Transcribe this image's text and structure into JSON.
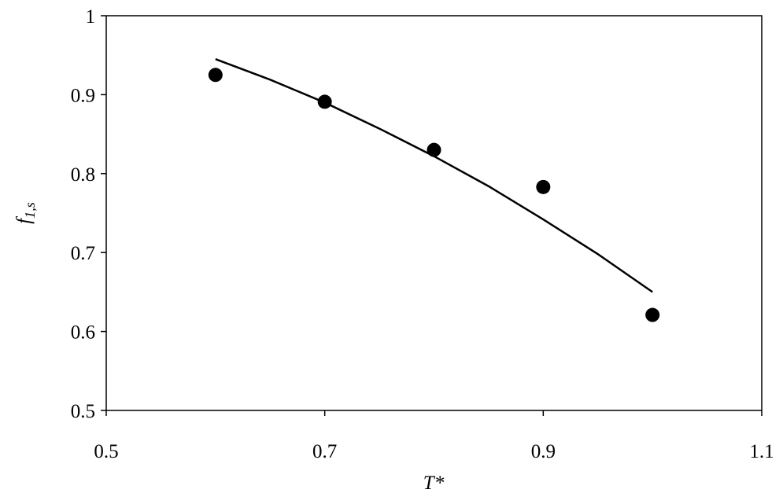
{
  "chart_data": {
    "type": "scatter",
    "x_label": "T*",
    "y_label": "f",
    "y_label_subscript": "1,s",
    "xlim": [
      0.5,
      1.1
    ],
    "xticks": [
      0.5,
      0.7,
      0.9,
      1.1
    ],
    "ylim": [
      0.5,
      1
    ],
    "yticks": [
      0.5,
      0.6,
      0.7,
      0.8,
      0.9,
      1
    ],
    "series": [
      {
        "style": "markers",
        "color": "#000000",
        "x": [
          0.6,
          0.7,
          0.8,
          0.9,
          1.0
        ],
        "values": [
          0.925,
          0.891,
          0.83,
          0.783,
          0.621
        ]
      },
      {
        "style": "line",
        "color": "#000000",
        "x": [
          0.6,
          0.65,
          0.7,
          0.75,
          0.8,
          0.85,
          0.9,
          0.95,
          1.0
        ],
        "values": [
          0.945,
          0.919,
          0.89,
          0.857,
          0.822,
          0.784,
          0.742,
          0.698,
          0.65
        ]
      }
    ]
  }
}
